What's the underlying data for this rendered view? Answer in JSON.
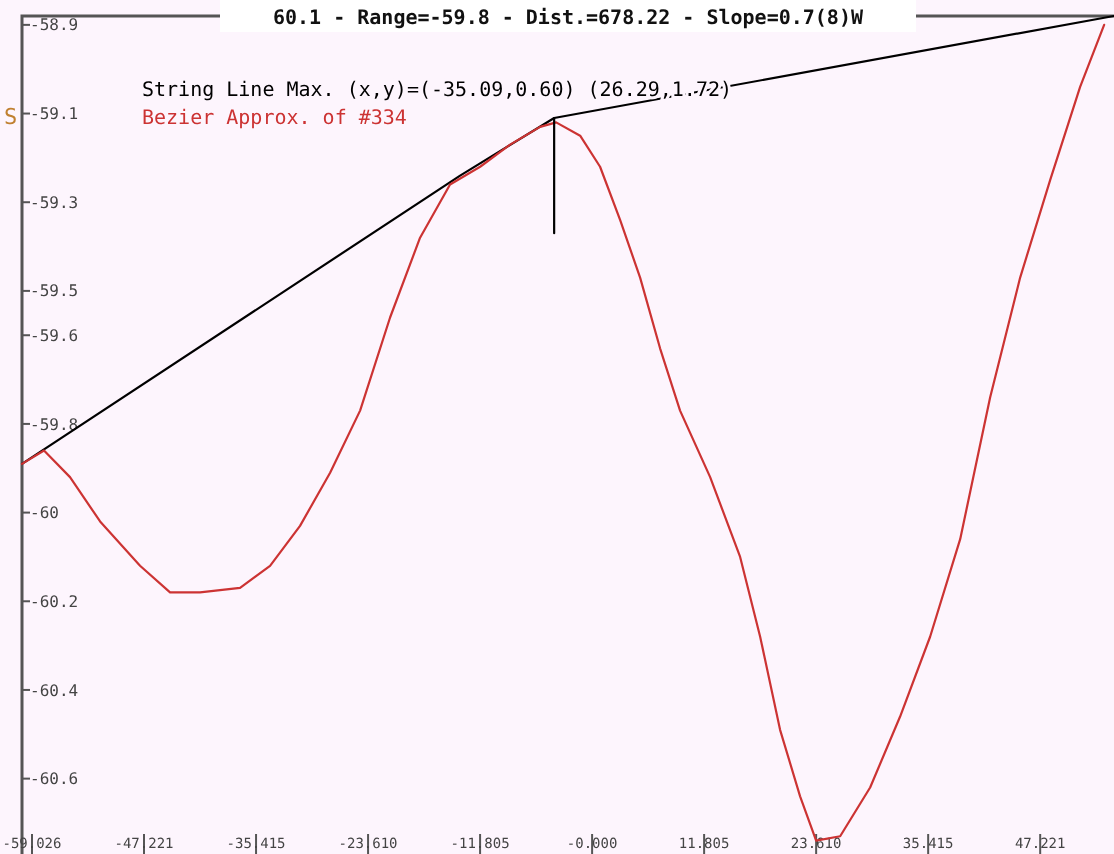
{
  "chart_data": {
    "type": "line",
    "title": "60.1 - Range=-59.8 - Dist.=678.22 - Slope=0.7(8)W",
    "annotations": [
      "S"
    ],
    "xlim": [
      -60.08,
      55.0
    ],
    "ylim": [
      -60.77,
      -58.88
    ],
    "xticks": [
      {
        "value": -59.026,
        "label": "-59.026"
      },
      {
        "value": -47.221,
        "label": "-47.221"
      },
      {
        "value": -35.415,
        "label": "-35.415"
      },
      {
        "value": -23.61,
        "label": "-23.610"
      },
      {
        "value": -11.805,
        "label": "-11.805"
      },
      {
        "value": 0,
        "label": "-0.000"
      },
      {
        "value": 11.805,
        "label": "11.805"
      },
      {
        "value": 23.61,
        "label": "23.610"
      },
      {
        "value": 35.415,
        "label": "35.415"
      },
      {
        "value": 47.221,
        "label": "47.221"
      }
    ],
    "yticks": [
      -58.9,
      -59.1,
      -59.3,
      -59.5,
      -59.6,
      -59.8,
      -60,
      -60.2,
      -60.4,
      -60.6
    ],
    "grid": false,
    "legend": "top left",
    "marker": "none",
    "line_style": "solid",
    "series": [
      {
        "name": "String Line Max. (x,y)=(-35.09,0.60) (26.29,1.72)",
        "color": "#000000",
        "x": [
          -60.08,
          -13.91,
          -4.0,
          55.0
        ],
        "values": [
          -59.89,
          -59.24,
          -59.11,
          -58.88
        ]
      },
      {
        "name": "Bezier Approx. of #334",
        "color": "#cc3333",
        "x": [
          -60.08,
          -57.76,
          -55.02,
          -51.85,
          -47.64,
          -44.48,
          -41.32,
          -37.1,
          -33.94,
          -30.78,
          -27.61,
          -24.45,
          -21.29,
          -18.13,
          -14.97,
          -11.8,
          -8.64,
          -5.48,
          -3.79,
          -1.26,
          0.84,
          2.95,
          5.06,
          7.17,
          9.27,
          12.44,
          15.6,
          17.71,
          19.81,
          21.92,
          23.61,
          26.14,
          29.3,
          32.46,
          35.62,
          38.79,
          41.95,
          45.11,
          48.27,
          51.43,
          53.96
        ],
        "values": [
          -59.89,
          -59.86,
          -59.92,
          -60.02,
          -60.12,
          -60.18,
          -60.18,
          -60.17,
          -60.12,
          -60.03,
          -59.91,
          -59.77,
          -59.56,
          -59.38,
          -59.26,
          -59.22,
          -59.17,
          -59.13,
          -59.12,
          -59.15,
          -59.22,
          -59.34,
          -59.47,
          -59.63,
          -59.77,
          -59.92,
          -60.1,
          -60.28,
          -60.49,
          -60.64,
          -60.74,
          -60.73,
          -60.62,
          -60.46,
          -60.28,
          -60.06,
          -59.74,
          -59.47,
          -59.25,
          -59.04,
          -58.9
        ]
      },
      {
        "color": "#000000",
        "x": [
          -4.0,
          -4.0
        ],
        "values": [
          -59.11,
          -59.37
        ]
      }
    ]
  }
}
